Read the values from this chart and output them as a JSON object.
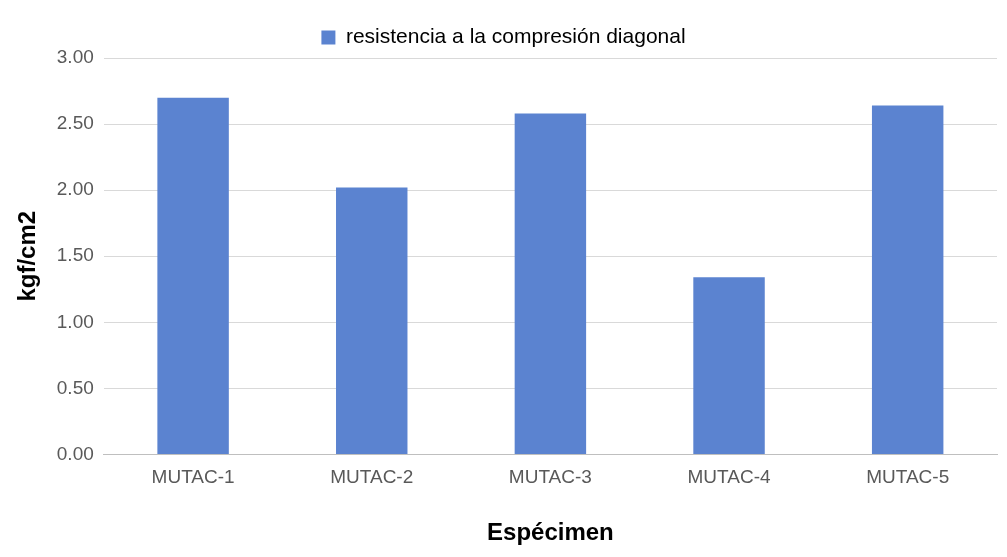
{
  "chart_data": {
    "type": "bar",
    "xlabel": "Espécimen",
    "ylabel": "kgf/cm2",
    "categories": [
      "MUTAC-1",
      "MUTAC-2",
      "MUTAC-3",
      "MUTAC-4",
      "MUTAC-5"
    ],
    "series": [
      {
        "name": "resistencia a la compresión diagonal",
        "color": "#5b83d0",
        "values": [
          2.7,
          2.02,
          2.58,
          1.34,
          2.64
        ]
      }
    ],
    "ylim": [
      0,
      3
    ],
    "yticks": [
      {
        "value": 0,
        "label": "0.00"
      },
      {
        "value": 0.5,
        "label": "0.50"
      },
      {
        "value": 1,
        "label": "1.00"
      },
      {
        "value": 1.5,
        "label": "1.50"
      },
      {
        "value": 2,
        "label": "2.00"
      },
      {
        "value": 2.5,
        "label": "2.50"
      },
      {
        "value": 3,
        "label": "3.00"
      }
    ],
    "grid": "y",
    "legend": "top"
  }
}
